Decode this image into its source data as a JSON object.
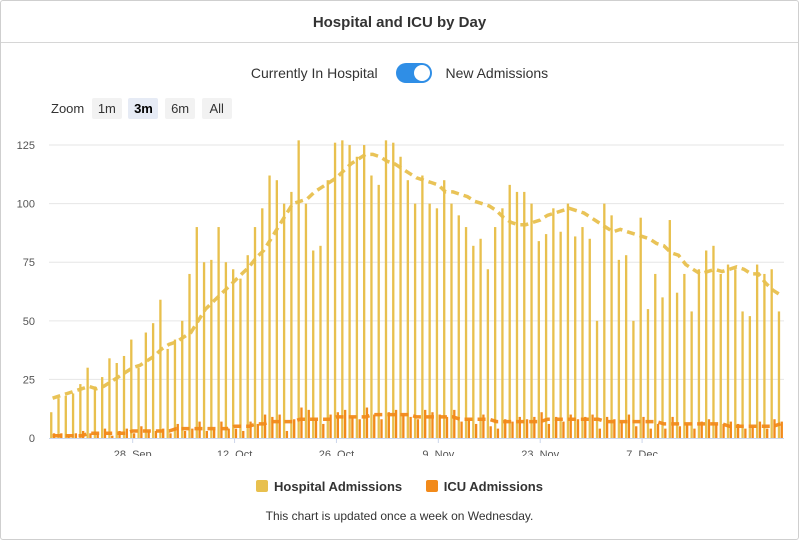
{
  "title": "Hospital and ICU by Day",
  "toggle": {
    "left_label": "Currently In Hospital",
    "right_label": "New Admissions",
    "state": "on",
    "color": "#2f8ee6"
  },
  "zoom": {
    "label": "Zoom",
    "options": [
      "1m",
      "3m",
      "6m",
      "All"
    ],
    "selected": "3m"
  },
  "legend": {
    "items": [
      {
        "label": "Hospital Admissions",
        "color": "#e8c04e"
      },
      {
        "label": "ICU Admissions",
        "color": "#f28a1a"
      }
    ]
  },
  "footnote": "This chart is updated once a week on Wednesday.",
  "chart_data": {
    "type": "bar",
    "start_date": "2020-09-17",
    "x_ticks": [
      {
        "date": "2020-09-28",
        "label": "28. Sep"
      },
      {
        "date": "2020-10-12",
        "label": "12. Oct"
      },
      {
        "date": "2020-10-26",
        "label": "26. Oct"
      },
      {
        "date": "2020-11-09",
        "label": "9. Nov"
      },
      {
        "date": "2020-11-23",
        "label": "23. Nov"
      },
      {
        "date": "2020-12-07",
        "label": "7. Dec"
      }
    ],
    "y_ticks": [
      0,
      25,
      50,
      75,
      100,
      125
    ],
    "ylim": [
      0,
      128
    ],
    "grid": true,
    "legend_position": "bottom",
    "series": [
      {
        "name": "Hospital Admissions",
        "type": "bar",
        "color": "#e8c04e",
        "values": [
          11,
          17,
          18,
          19,
          23,
          30,
          22,
          26,
          34,
          32,
          35,
          42,
          30,
          45,
          49,
          59,
          38,
          42,
          50,
          70,
          90,
          75,
          76,
          90,
          75,
          72,
          68,
          78,
          90,
          98,
          112,
          110,
          100,
          105,
          127,
          100,
          80,
          82,
          110,
          126,
          127,
          125,
          120,
          125,
          112,
          108,
          127,
          126,
          120,
          110,
          100,
          112,
          100,
          98,
          110,
          100,
          95,
          90,
          82,
          85,
          72,
          90,
          98,
          108,
          105,
          105,
          100,
          84,
          87,
          98,
          88,
          100,
          86,
          90,
          85,
          50,
          100,
          95,
          76,
          78,
          50,
          94,
          55,
          70,
          60,
          93,
          62,
          70,
          54,
          72,
          80,
          82,
          70,
          74,
          72,
          54,
          52,
          74,
          70,
          72,
          54
        ]
      },
      {
        "name": "ICU Admissions",
        "type": "bar",
        "color": "#f28a1a",
        "values": [
          2,
          2,
          1,
          2,
          3,
          2,
          2,
          4,
          1,
          3,
          4,
          2,
          5,
          3,
          3,
          4,
          2,
          6,
          3,
          4,
          7,
          3,
          4,
          7,
          4,
          4,
          3,
          7,
          6,
          10,
          9,
          10,
          3,
          8,
          13,
          12,
          8,
          6,
          10,
          11,
          12,
          9,
          8,
          13,
          10,
          8,
          11,
          12,
          10,
          9,
          8,
          12,
          11,
          10,
          9,
          12,
          7,
          8,
          6,
          10,
          5,
          4,
          8,
          7,
          9,
          8,
          9,
          11,
          6,
          9,
          7,
          10,
          8,
          9,
          10,
          4,
          9,
          8,
          7,
          10,
          5,
          9,
          4,
          6,
          4,
          9,
          5,
          6,
          4,
          7,
          8,
          6,
          6,
          7,
          6,
          4,
          5,
          7,
          4,
          8,
          7
        ]
      },
      {
        "name": "Hospital Admissions 7-day average",
        "type": "line",
        "color": "#e8c04e",
        "dashed": true,
        "values": [
          17,
          18,
          19,
          20,
          21,
          22,
          21,
          22,
          24,
          26,
          28,
          30,
          31,
          33,
          35,
          38,
          40,
          41,
          43,
          45,
          50,
          55,
          58,
          61,
          64,
          67,
          70,
          73,
          77,
          80,
          85,
          90,
          95,
          100,
          101,
          102,
          105,
          107,
          109,
          111,
          114,
          117,
          119,
          121,
          121,
          120,
          118,
          117,
          115,
          113,
          111,
          110,
          109,
          108,
          105,
          105,
          104,
          103,
          101,
          100,
          99,
          97,
          94,
          92,
          91,
          91,
          92,
          93,
          95,
          96,
          97,
          98,
          97,
          96,
          94,
          92,
          90,
          88,
          89,
          88,
          87,
          86,
          85,
          83,
          82,
          79,
          78,
          74,
          72,
          70,
          71,
          72,
          71,
          72,
          73,
          72,
          70,
          70,
          66,
          63,
          61
        ]
      },
      {
        "name": "ICU Admissions 7-day average",
        "type": "line",
        "color": "#f28a1a",
        "dashed": true,
        "values": [
          1,
          1,
          1,
          1,
          1,
          2,
          2,
          2,
          2,
          2,
          2,
          3,
          3,
          3,
          3,
          3,
          3,
          4,
          4,
          4,
          4,
          4,
          4,
          4,
          4,
          5,
          5,
          5,
          6,
          6,
          7,
          7,
          7,
          7,
          8,
          8,
          8,
          8,
          8,
          9,
          9,
          9,
          9,
          9,
          10,
          10,
          10,
          10,
          10,
          10,
          9,
          9,
          9,
          9,
          9,
          9,
          8,
          8,
          8,
          8,
          8,
          7,
          7,
          7,
          7,
          7,
          7,
          7,
          8,
          8,
          8,
          8,
          8,
          8,
          8,
          8,
          7,
          7,
          7,
          7,
          7,
          7,
          7,
          7,
          6,
          6,
          6,
          6,
          6,
          6,
          6,
          6,
          6,
          5,
          5,
          5,
          5,
          5,
          5,
          5,
          6
        ]
      }
    ]
  }
}
